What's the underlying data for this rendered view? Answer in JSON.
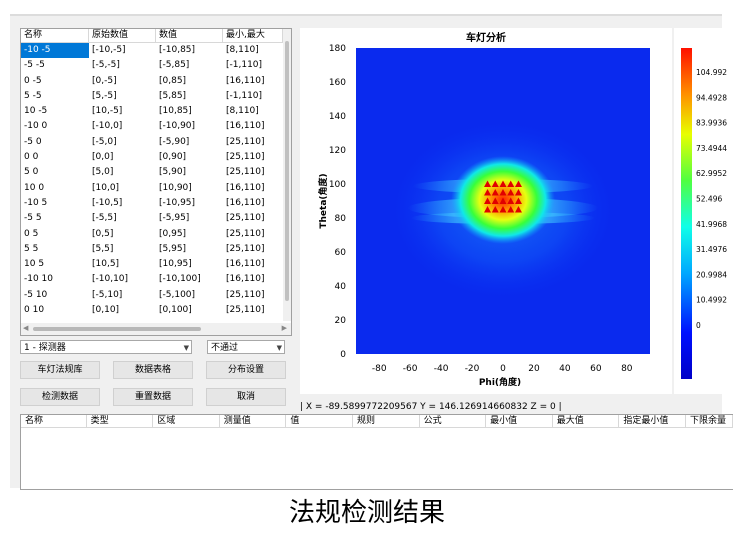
{
  "table": {
    "headers": [
      "名称",
      "原始数值",
      "数值",
      "最小,最大"
    ],
    "rows": [
      [
        "-10 -5",
        "[-10,-5]",
        "[-10,85]",
        "[8,110]"
      ],
      [
        "-5 -5",
        "[-5,-5]",
        "[-5,85]",
        "[-1,110]"
      ],
      [
        "0 -5",
        "[0,-5]",
        "[0,85]",
        "[16,110]"
      ],
      [
        "5 -5",
        "[5,-5]",
        "[5,85]",
        "[-1,110]"
      ],
      [
        "10 -5",
        "[10,-5]",
        "[10,85]",
        "[8,110]"
      ],
      [
        "-10 0",
        "[-10,0]",
        "[-10,90]",
        "[16,110]"
      ],
      [
        "-5 0",
        "[-5,0]",
        "[-5,90]",
        "[25,110]"
      ],
      [
        "0 0",
        "[0,0]",
        "[0,90]",
        "[25,110]"
      ],
      [
        "5 0",
        "[5,0]",
        "[5,90]",
        "[25,110]"
      ],
      [
        "10 0",
        "[10,0]",
        "[10,90]",
        "[16,110]"
      ],
      [
        "-10 5",
        "[-10,5]",
        "[-10,95]",
        "[16,110]"
      ],
      [
        "-5 5",
        "[-5,5]",
        "[-5,95]",
        "[25,110]"
      ],
      [
        "0 5",
        "[0,5]",
        "[0,95]",
        "[25,110]"
      ],
      [
        "5 5",
        "[5,5]",
        "[5,95]",
        "[25,110]"
      ],
      [
        "10 5",
        "[10,5]",
        "[10,95]",
        "[16,110]"
      ],
      [
        "-10 10",
        "[-10,10]",
        "[-10,100]",
        "[16,110]"
      ],
      [
        "-5 10",
        "[-5,10]",
        "[-5,100]",
        "[25,110]"
      ],
      [
        "0 10",
        "[0,10]",
        "[0,100]",
        "[25,110]"
      ]
    ]
  },
  "controls": {
    "detector": "1 - 探测器",
    "result": "不通过",
    "buttons": [
      "车灯法规库",
      "数据表格",
      "分布设置",
      "检测数据",
      "重置数据",
      "取消"
    ]
  },
  "status_text": "| X = -89.5899772209567  Y = 146.126914660832  Z = 0 |",
  "results_headers": [
    "名称",
    "类型",
    "区域",
    "测量值",
    "值",
    "规则",
    "公式",
    "最小值",
    "最大值",
    "指定最小值",
    "下限余量"
  ],
  "caption": "法规检测结果",
  "chart_data": {
    "type": "heatmap",
    "title": "车灯分析",
    "xlabel": "Phi(角度)",
    "ylabel": "Theta(角度)",
    "xlim": [
      -95,
      95
    ],
    "ylim": [
      0,
      180
    ],
    "x_ticks": [
      -80,
      -60,
      -40,
      -20,
      0,
      20,
      40,
      60,
      80
    ],
    "y_ticks": [
      0,
      20,
      40,
      60,
      80,
      100,
      120,
      140,
      160,
      180
    ],
    "colorbar_ticks": [
      "104.992",
      "94.4928",
      "83.9936",
      "73.4944",
      "62.9952",
      "52.496",
      "41.9968",
      "31.4976",
      "20.9984",
      "10.4992",
      "0"
    ],
    "markers": {
      "symbol": "triangle",
      "color": "#e00000",
      "rows": [
        {
          "theta": 100,
          "phi": [
            -10,
            -5,
            0,
            5,
            10
          ]
        },
        {
          "theta": 95,
          "phi": [
            -10,
            -5,
            0,
            5,
            10
          ]
        },
        {
          "theta": 90,
          "phi": [
            -10,
            -5,
            0,
            5,
            10
          ]
        },
        {
          "theta": 85,
          "phi": [
            -10,
            -5,
            0,
            5,
            10
          ]
        }
      ]
    }
  }
}
